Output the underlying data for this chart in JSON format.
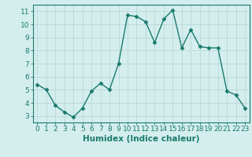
{
  "x": [
    0,
    1,
    2,
    3,
    4,
    5,
    6,
    7,
    8,
    9,
    10,
    11,
    12,
    13,
    14,
    15,
    16,
    17,
    18,
    19,
    20,
    21,
    22,
    23
  ],
  "y": [
    5.4,
    5.0,
    3.8,
    3.3,
    2.9,
    3.6,
    4.9,
    5.5,
    5.0,
    7.0,
    10.7,
    10.6,
    10.2,
    8.6,
    10.4,
    11.1,
    8.2,
    9.6,
    8.3,
    8.2,
    8.2,
    4.9,
    4.6,
    3.6
  ],
  "line_color": "#1a7a6e",
  "bg_color": "#d4eeed",
  "grid_color": "#b8d8d5",
  "xlabel": "Humidex (Indice chaleur)",
  "xlabel_weight": "bold",
  "xlabel_color": "#1a7a6e",
  "xlim": [
    -0.5,
    23.5
  ],
  "ylim": [
    2.5,
    11.5
  ],
  "xticks": [
    0,
    1,
    2,
    3,
    4,
    5,
    6,
    7,
    8,
    9,
    10,
    11,
    12,
    13,
    14,
    15,
    16,
    17,
    18,
    19,
    20,
    21,
    22,
    23
  ],
  "yticks": [
    3,
    4,
    5,
    6,
    7,
    8,
    9,
    10,
    11
  ],
  "tick_fontsize": 6.5,
  "xlabel_fontsize": 7.5,
  "marker": "D",
  "marker_size": 2.5,
  "linewidth": 1.0
}
